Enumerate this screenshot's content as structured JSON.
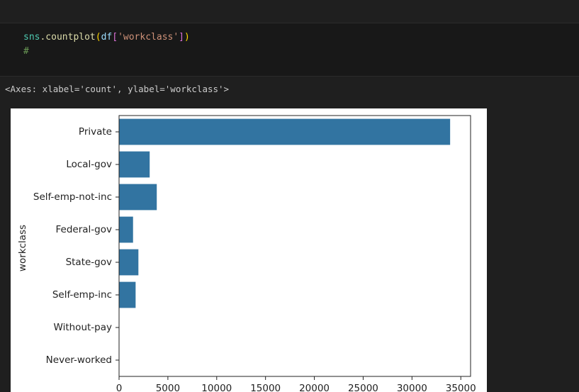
{
  "code": {
    "tokens": [
      "sns",
      ".countplot",
      "(",
      "df",
      "[",
      "'workclass'",
      "]",
      ")"
    ],
    "comment": "#"
  },
  "output": {
    "text": "<Axes: xlabel='count', ylabel='workclass'>"
  },
  "chart_data": {
    "type": "barh",
    "ylabel": "workclass",
    "categories": [
      "Private",
      "Local-gov",
      "Self-emp-not-inc",
      "Federal-gov",
      "State-gov",
      "Self-emp-inc",
      "Without-pay",
      "Never-worked"
    ],
    "values": [
      33906,
      3136,
      3862,
      1432,
      1981,
      1695,
      21,
      10
    ],
    "color": "#3274a1",
    "xlim": [
      0,
      36000
    ],
    "xticks": [
      0,
      5000,
      10000,
      15000,
      20000,
      25000,
      30000,
      35000
    ],
    "grid": false
  }
}
